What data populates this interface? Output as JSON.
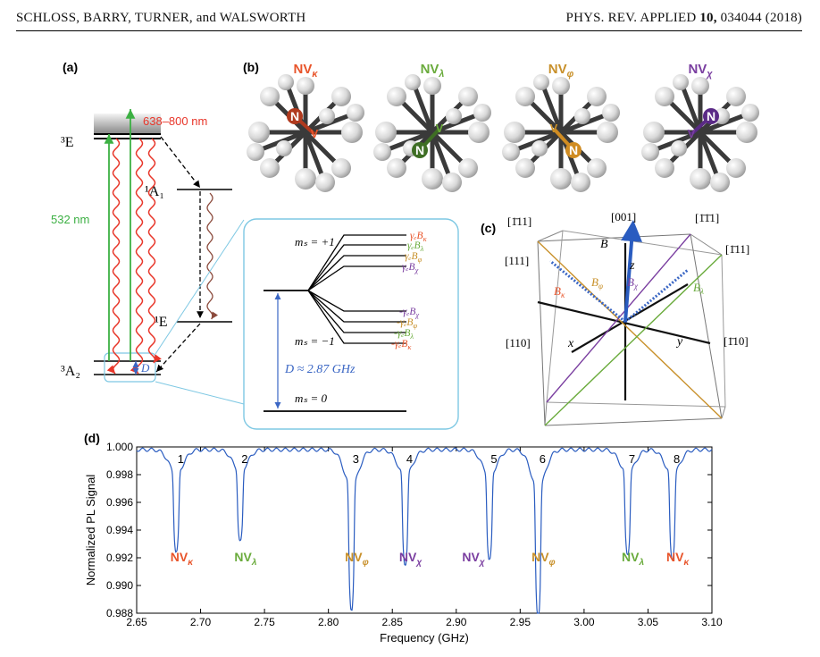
{
  "header": {
    "authors": "SCHLOSS, BARRY, TURNER, and WALSWORTH",
    "journal": "PHYS. REV. APPLIED ",
    "volume": "10,",
    "article": " 034044 (2018)"
  },
  "panel_a": {
    "label": "(a)",
    "level_3E": "³E",
    "level_1A1": "¹A₁",
    "level_1E": "¹E",
    "level_3A2": "³A₂",
    "wavelength_red": "638–800 nm",
    "wavelength_green": "532 nm",
    "zfs_symbol": "D",
    "colors": {
      "green": "#3cb043",
      "red": "#e8362a",
      "brown": "#8b4a3c",
      "blue": "#3a66c4",
      "cyan": "#7ec8e3"
    }
  },
  "zoom_inset": {
    "ms_plus": "mₛ = +1",
    "ms_minus": "mₛ = −1",
    "ms_zero": "mₛ = 0",
    "zfs_value": "D ≈ 2.87 GHz",
    "labels": [
      {
        "text": "γₑB_κ",
        "color": "#e8542a"
      },
      {
        "text": "γₑB_λ",
        "color": "#6aab3c"
      },
      {
        "text": "γₑB_φ",
        "color": "#c8902a"
      },
      {
        "text": "γₑB_χ",
        "color": "#7a3ea0"
      },
      {
        "text": "-γₑB_χ",
        "color": "#7a3ea0"
      },
      {
        "text": "-γₑB_φ",
        "color": "#c8902a"
      },
      {
        "text": "-γₑB_λ",
        "color": "#6aab3c"
      },
      {
        "text": "-γₑB_κ",
        "color": "#e8542a"
      }
    ]
  },
  "panel_b": {
    "label": "(b)",
    "centers": [
      {
        "name": "NV",
        "sub": "κ",
        "color": "#e8542a",
        "nvcolor": "#b03a1e"
      },
      {
        "name": "NV",
        "sub": "λ",
        "color": "#6aab3c",
        "nvcolor": "#3e6e24"
      },
      {
        "name": "NV",
        "sub": "φ",
        "color": "#c8902a",
        "nvcolor": "#d08c22"
      },
      {
        "name": "NV",
        "sub": "χ",
        "color": "#7a3ea0",
        "nvcolor": "#5a2a86"
      }
    ],
    "atom_N": "N",
    "atom_V": "V"
  },
  "panel_c": {
    "label": "(c)",
    "dir_1m11": "[1̄11]",
    "dir_001": "[001]",
    "dir_m1m11": "[1̄1̄1]",
    "dir_111": "[111]",
    "dir_m111": "[1̄11]",
    "dir_110": "[110]",
    "dir_m110": "[1̄10]",
    "dir_1m11_top": "[11̄1]",
    "axis_x": "x",
    "axis_y": "y",
    "axis_z": "z",
    "field": "B⃗",
    "B_kappa": "B",
    "B_kappa_sub": "κ",
    "B_phi": "B",
    "B_phi_sub": "φ",
    "B_chi": "B",
    "B_chi_sub": "χ",
    "B_lambda": "B",
    "B_lambda_sub": "λ"
  },
  "panel_d": {
    "label": "(d)",
    "ylabel": "Normalized PL Signal",
    "xlabel": "Frequency (GHz)",
    "peak_numbers": [
      "1",
      "2",
      "3",
      "4",
      "5",
      "6",
      "7",
      "8"
    ],
    "peak_labels": [
      {
        "name": "NV",
        "sub": "κ",
        "color": "#e8542a"
      },
      {
        "name": "NV",
        "sub": "λ",
        "color": "#6aab3c"
      },
      {
        "name": "NV",
        "sub": "φ",
        "color": "#c8902a"
      },
      {
        "name": "NV",
        "sub": "χ",
        "color": "#7a3ea0"
      },
      {
        "name": "NV",
        "sub": "χ",
        "color": "#7a3ea0"
      },
      {
        "name": "NV",
        "sub": "φ",
        "color": "#c8902a"
      },
      {
        "name": "NV",
        "sub": "λ",
        "color": "#6aab3c"
      },
      {
        "name": "NV",
        "sub": "κ",
        "color": "#e8542a"
      }
    ]
  },
  "chart_data": {
    "type": "line",
    "title": "",
    "xlabel": "Frequency (GHz)",
    "ylabel": "Normalized PL Signal",
    "xlim": [
      2.65,
      3.1
    ],
    "ylim": [
      0.988,
      1.0
    ],
    "xticks": [
      "2.65",
      "2.70",
      "2.75",
      "2.80",
      "2.85",
      "2.90",
      "2.95",
      "3.00",
      "3.05",
      "3.10"
    ],
    "yticks": [
      "0.988",
      "0.990",
      "0.992",
      "0.994",
      "0.996",
      "0.998",
      "1.000"
    ],
    "line_color": "#2a5cc0",
    "dips": [
      {
        "x": 2.681,
        "min": 0.9937,
        "width": 0.004
      },
      {
        "x": 2.731,
        "min": 0.9943,
        "width": 0.004
      },
      {
        "x": 2.818,
        "min": 0.9903,
        "width": 0.004
      },
      {
        "x": 2.86,
        "min": 0.993,
        "width": 0.004
      },
      {
        "x": 2.926,
        "min": 0.9932,
        "width": 0.004
      },
      {
        "x": 2.964,
        "min": 0.9898,
        "width": 0.004
      },
      {
        "x": 3.034,
        "min": 0.9936,
        "width": 0.004
      },
      {
        "x": 3.069,
        "min": 0.9933,
        "width": 0.004
      }
    ],
    "baseline": 0.9998
  }
}
